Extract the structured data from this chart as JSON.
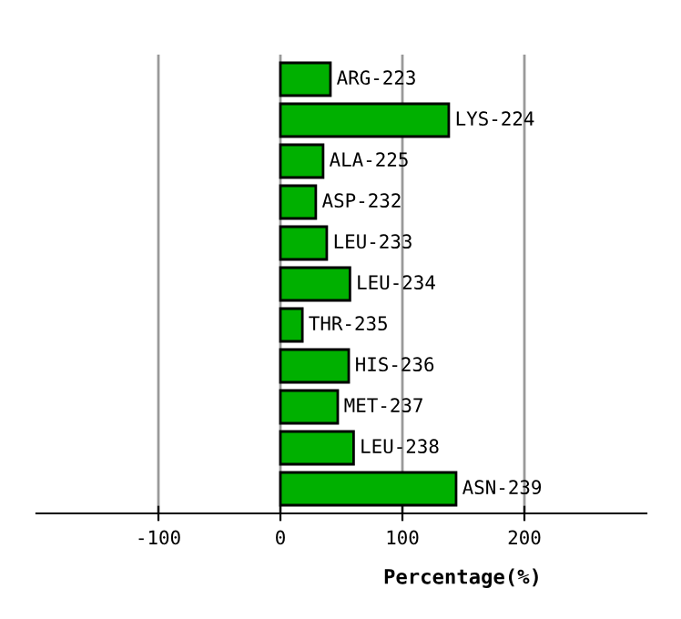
{
  "chart_data": {
    "type": "bar",
    "orientation": "horizontal",
    "xlabel": "Percentage(%)",
    "categories": [
      "ARG-223",
      "LYS-224",
      "ALA-225",
      "ASP-232",
      "LEU-233",
      "LEU-234",
      "THR-235",
      "HIS-236",
      "MET-237",
      "LEU-238",
      "ASN-239"
    ],
    "values": [
      41,
      138,
      35,
      29,
      38,
      57,
      18,
      56,
      47,
      60,
      144
    ],
    "color": "#00b000",
    "xlim": [
      -200,
      300
    ],
    "xticks": [
      -100,
      0,
      100,
      200
    ],
    "grid": "x"
  }
}
